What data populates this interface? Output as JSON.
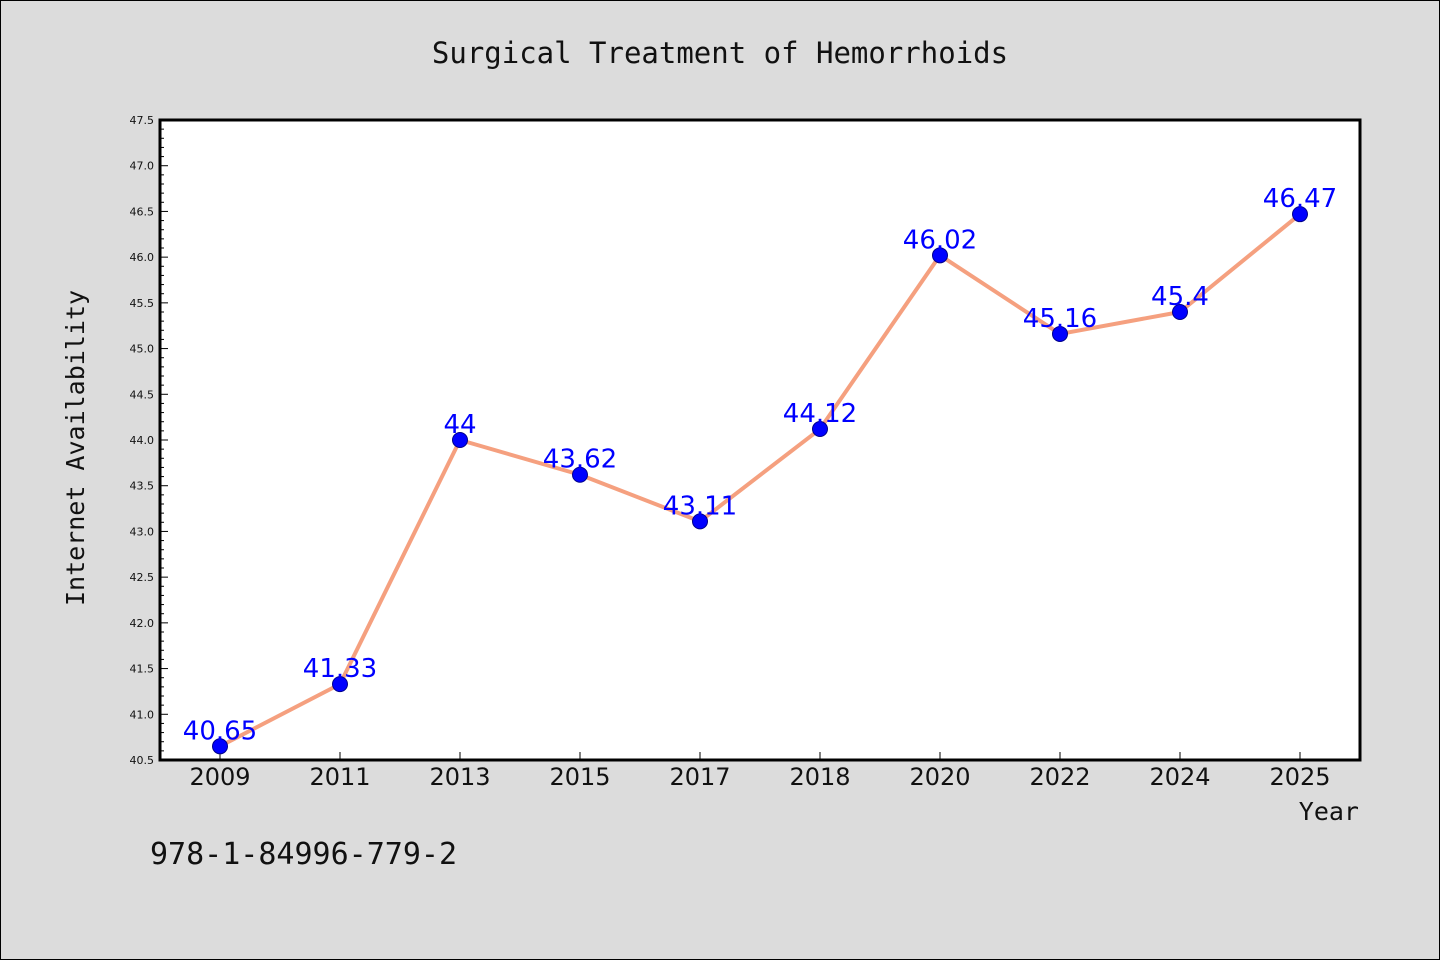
{
  "chart_data": {
    "type": "line",
    "title": "Surgical Treatment of Hemorrhoids",
    "xlabel": "Year",
    "ylabel": "Internet Availability",
    "categories": [
      "2009",
      "2011",
      "2013",
      "2015",
      "2017",
      "2018",
      "2020",
      "2022",
      "2024",
      "2025"
    ],
    "series": [
      {
        "values": [
          40.65,
          41.33,
          44,
          43.62,
          43.11,
          44.12,
          46.02,
          45.16,
          45.4,
          46.47
        ],
        "data_labels": [
          "40.65",
          "41.33",
          "44",
          "43.62",
          "43.11",
          "44.12",
          "46.02",
          "45.16",
          "45.4",
          "46.47"
        ]
      }
    ],
    "ylim": [
      40.5,
      47.5
    ],
    "yticks": [
      "40.5",
      "41.0",
      "41.5",
      "42.0",
      "42.5",
      "43.0",
      "43.5",
      "44.0",
      "44.5",
      "45.0",
      "45.5",
      "46.0",
      "46.5",
      "47.0",
      "47.5"
    ],
    "grid": false,
    "legend": "none",
    "colors": {
      "line": "#f5a07f",
      "marker": "#0000ff",
      "data_label": "#0000ff",
      "background": "#dcdcdc",
      "plot_background": "#ffffff"
    }
  },
  "footnote": "978-1-84996-779-2"
}
